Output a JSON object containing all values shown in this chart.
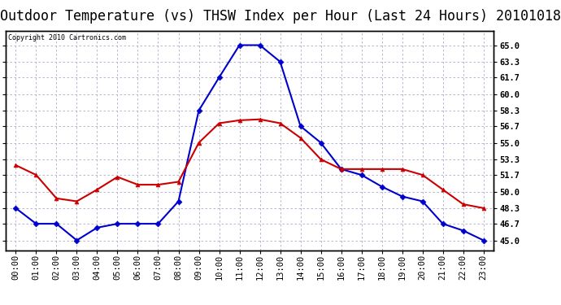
{
  "title": "Outdoor Temperature (vs) THSW Index per Hour (Last 24 Hours) 20101018",
  "copyright_text": "Copyright 2010 Cartronics.com",
  "hours": [
    "00:00",
    "01:00",
    "02:00",
    "03:00",
    "04:00",
    "05:00",
    "06:00",
    "07:00",
    "08:00",
    "09:00",
    "10:00",
    "11:00",
    "12:00",
    "13:00",
    "14:00",
    "15:00",
    "16:00",
    "17:00",
    "18:00",
    "19:00",
    "20:00",
    "21:00",
    "22:00",
    "23:00"
  ],
  "temp": [
    52.7,
    51.7,
    49.3,
    49.0,
    50.2,
    51.5,
    50.7,
    50.7,
    51.0,
    55.0,
    57.0,
    57.3,
    57.4,
    57.0,
    55.5,
    53.3,
    52.3,
    52.3,
    52.3,
    52.3,
    51.7,
    50.2,
    48.7,
    48.3
  ],
  "thsw": [
    48.3,
    46.7,
    46.7,
    45.0,
    46.3,
    46.7,
    46.7,
    46.7,
    49.0,
    58.3,
    61.7,
    65.0,
    65.0,
    63.3,
    56.7,
    55.0,
    52.3,
    51.7,
    50.5,
    49.5,
    49.0,
    46.7,
    46.0,
    45.0
  ],
  "temp_color": "#cc0000",
  "thsw_color": "#0000cc",
  "ylim": [
    44.0,
    66.5
  ],
  "yticks": [
    65.0,
    63.3,
    61.7,
    60.0,
    58.3,
    56.7,
    55.0,
    53.3,
    51.7,
    50.0,
    48.3,
    46.7,
    45.0
  ],
  "background_color": "#ffffff",
  "plot_bg_color": "#ffffff",
  "grid_color": "#aaaacc",
  "title_fontsize": 12,
  "tick_fontsize": 7.5,
  "marker_temp": "^",
  "marker_thsw": "D",
  "marker_size": 3.5
}
